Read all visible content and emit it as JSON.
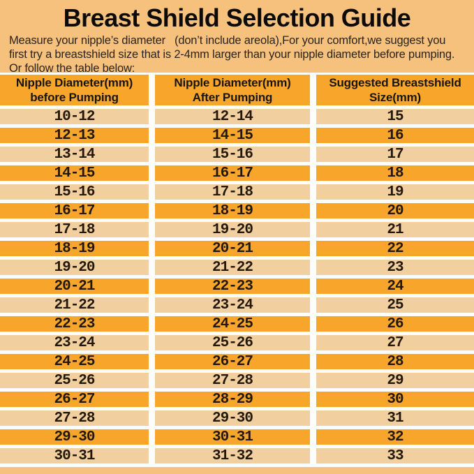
{
  "header": {
    "title": "Breast Shield Selection Guide"
  },
  "intro": {
    "lines": [
      "Measure your nipple’s diameter   (don’t include areola),For your comfort,we suggest you",
      "first try a breastshield size that is 2-4mm larger than your nipple diameter before pumping.",
      "Or follow the table below:"
    ]
  },
  "table": {
    "headers": [
      {
        "line1": "Nipple Diameter(mm)",
        "line2": "before Pumping"
      },
      {
        "line1": "Nipple Diameter(mm)",
        "line2": "After Pumping"
      },
      {
        "line1": "Suggested Breastshield",
        "line2": "Size(mm)"
      }
    ],
    "rows": [
      [
        "10-12",
        "12-14",
        "15"
      ],
      [
        "12-13",
        "14-15",
        "16"
      ],
      [
        "13-14",
        "15-16",
        "17"
      ],
      [
        "14-15",
        "16-17",
        "18"
      ],
      [
        "15-16",
        "17-18",
        "19"
      ],
      [
        "16-17",
        "18-19",
        "20"
      ],
      [
        "17-18",
        "19-20",
        "21"
      ],
      [
        "18-19",
        "20-21",
        "22"
      ],
      [
        "19-20",
        "21-22",
        "23"
      ],
      [
        "20-21",
        "22-23",
        "24"
      ],
      [
        "21-22",
        "23-24",
        "25"
      ],
      [
        "22-23",
        "24-25",
        "26"
      ],
      [
        "23-24",
        "25-26",
        "27"
      ],
      [
        "24-25",
        "26-27",
        "28"
      ],
      [
        "25-26",
        "27-28",
        "29"
      ],
      [
        "26-27",
        "28-29",
        "30"
      ],
      [
        "27-28",
        "29-30",
        "31"
      ],
      [
        "29-30",
        "30-31",
        "32"
      ],
      [
        "30-31",
        "31-32",
        "33"
      ]
    ]
  },
  "colors": {
    "page_bg": "#f6c07d",
    "row_light": "#f2cf9f",
    "row_dark": "#f7a62b",
    "header_bg": "#f7a62b",
    "separator": "#fdfdfa",
    "text": "#1a1510"
  }
}
